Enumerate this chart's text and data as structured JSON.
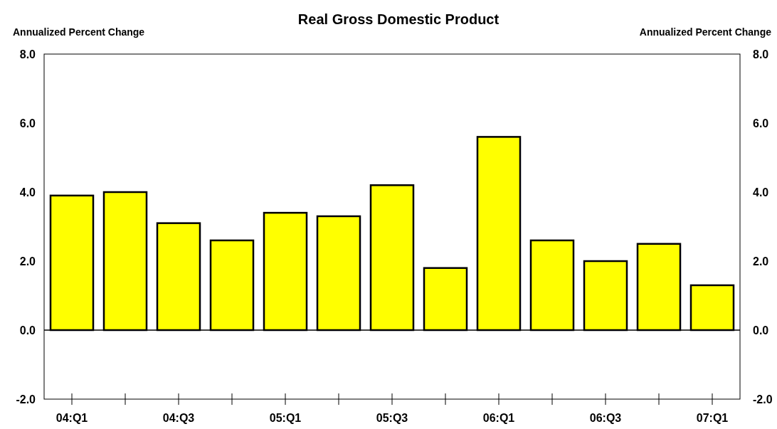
{
  "chart_data": {
    "type": "bar",
    "title": "Real Gross Domestic Product",
    "ylabel": "Annualized Percent Change",
    "y2label": "Annualized Percent Change",
    "categories": [
      "04:Q1",
      null,
      "04:Q3",
      null,
      "05:Q1",
      null,
      "05:Q3",
      null,
      "06:Q1",
      null,
      "06:Q3",
      null,
      "07:Q1"
    ],
    "values": [
      3.9,
      4.0,
      3.1,
      2.6,
      3.4,
      3.3,
      4.2,
      1.8,
      5.6,
      2.6,
      2.0,
      2.5,
      1.3
    ],
    "color": "#ffff00",
    "ylim": [
      -2,
      8
    ],
    "yticks": [
      {
        "value": -2,
        "label": "-2.0"
      },
      {
        "value": 0,
        "label": "0.0"
      },
      {
        "value": 2,
        "label": "2.0"
      },
      {
        "value": 4,
        "label": "4.0"
      },
      {
        "value": 6,
        "label": "6.0"
      },
      {
        "value": 8,
        "label": "8.0"
      }
    ],
    "y2lim": [
      -2,
      8
    ],
    "y2ticks": [
      {
        "value": -2,
        "label": "-2.0"
      },
      {
        "value": 0,
        "label": "0.0"
      },
      {
        "value": 2,
        "label": "2.0"
      },
      {
        "value": 4,
        "label": "4.0"
      },
      {
        "value": 6,
        "label": "6.0"
      },
      {
        "value": 8,
        "label": "8.0"
      }
    ]
  }
}
